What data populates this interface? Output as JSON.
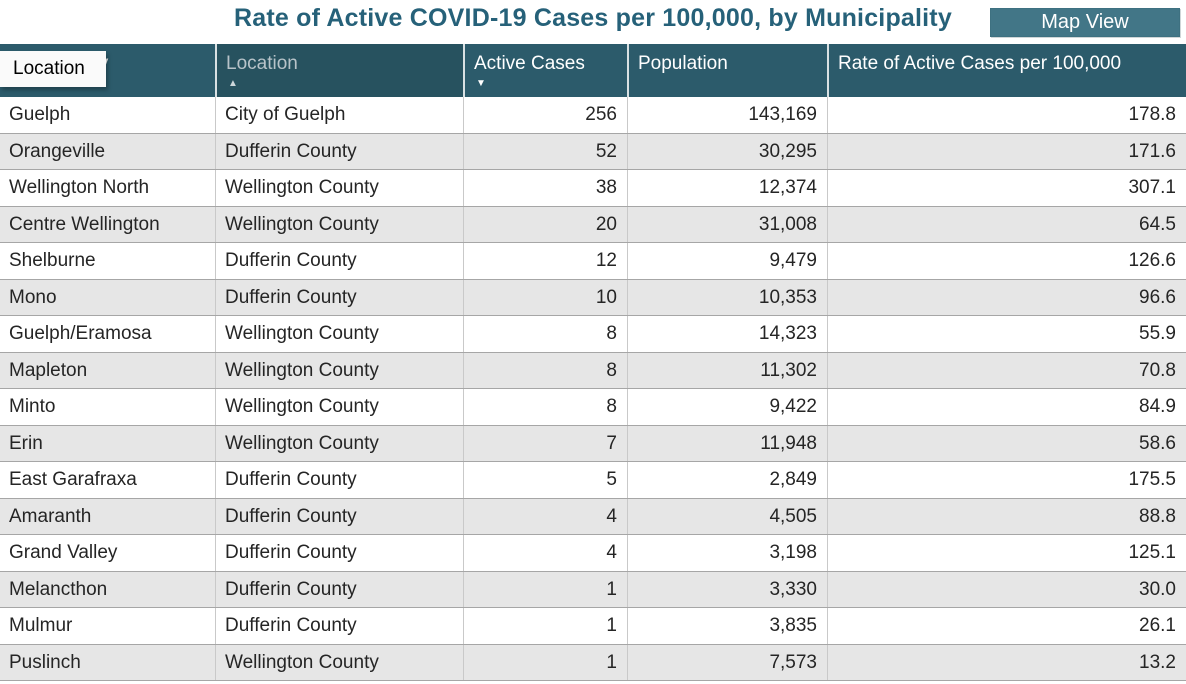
{
  "title": "Rate of Active COVID-19 Cases per 100,000, by Municipality",
  "map_view_button": {
    "label": "Map View"
  },
  "tooltip": {
    "text": "Location"
  },
  "icons": {
    "sort_ascending": "▲",
    "sort_descending": "▼"
  },
  "table": {
    "columns": [
      {
        "label": "Municipality",
        "align": "left",
        "sort": null,
        "hovered": false
      },
      {
        "label": "Location",
        "align": "left",
        "sort": "asc",
        "hovered": true
      },
      {
        "label": "Active Cases",
        "align": "right",
        "sort": "desc",
        "hovered": false
      },
      {
        "label": "Population",
        "align": "right",
        "sort": null,
        "hovered": false
      },
      {
        "label": "Rate of Active Cases per 100,000",
        "align": "right",
        "sort": null,
        "hovered": false
      }
    ],
    "rows": [
      [
        "Guelph",
        "City of Guelph",
        "256",
        "143,169",
        "178.8"
      ],
      [
        "Orangeville",
        "Dufferin County",
        "52",
        "30,295",
        "171.6"
      ],
      [
        "Wellington North",
        "Wellington County",
        "38",
        "12,374",
        "307.1"
      ],
      [
        "Centre Wellington",
        "Wellington County",
        "20",
        "31,008",
        "64.5"
      ],
      [
        "Shelburne",
        "Dufferin County",
        "12",
        "9,479",
        "126.6"
      ],
      [
        "Mono",
        "Dufferin County",
        "10",
        "10,353",
        "96.6"
      ],
      [
        "Guelph/Eramosa",
        "Wellington County",
        "8",
        "14,323",
        "55.9"
      ],
      [
        "Mapleton",
        "Wellington County",
        "8",
        "11,302",
        "70.8"
      ],
      [
        "Minto",
        "Wellington County",
        "8",
        "9,422",
        "84.9"
      ],
      [
        "Erin",
        "Wellington County",
        "7",
        "11,948",
        "58.6"
      ],
      [
        "East Garafraxa",
        "Dufferin County",
        "5",
        "2,849",
        "175.5"
      ],
      [
        "Amaranth",
        "Dufferin County",
        "4",
        "4,505",
        "88.8"
      ],
      [
        "Grand Valley",
        "Dufferin County",
        "4",
        "3,198",
        "125.1"
      ],
      [
        "Melancthon",
        "Dufferin County",
        "1",
        "3,330",
        "30.0"
      ],
      [
        "Mulmur",
        "Dufferin County",
        "1",
        "3,835",
        "26.1"
      ],
      [
        "Puslinch",
        "Wellington County",
        "1",
        "7,573",
        "13.2"
      ]
    ]
  },
  "colors": {
    "title_color": "#266179",
    "header_bg": "#2C5B6B",
    "header_hover_bg": "#27525F",
    "header_text": "#FFFFFF",
    "header_text_dim": "#B7C3C9",
    "button_bg": "#427687",
    "alt_row_bg": "#E6E6E6",
    "row_border": "#A6A6A6",
    "col_border": "#C9C9C9",
    "header_sep": "#D9E1E3",
    "tooltip_bg": "#FAFAFA",
    "text": "#252525"
  }
}
